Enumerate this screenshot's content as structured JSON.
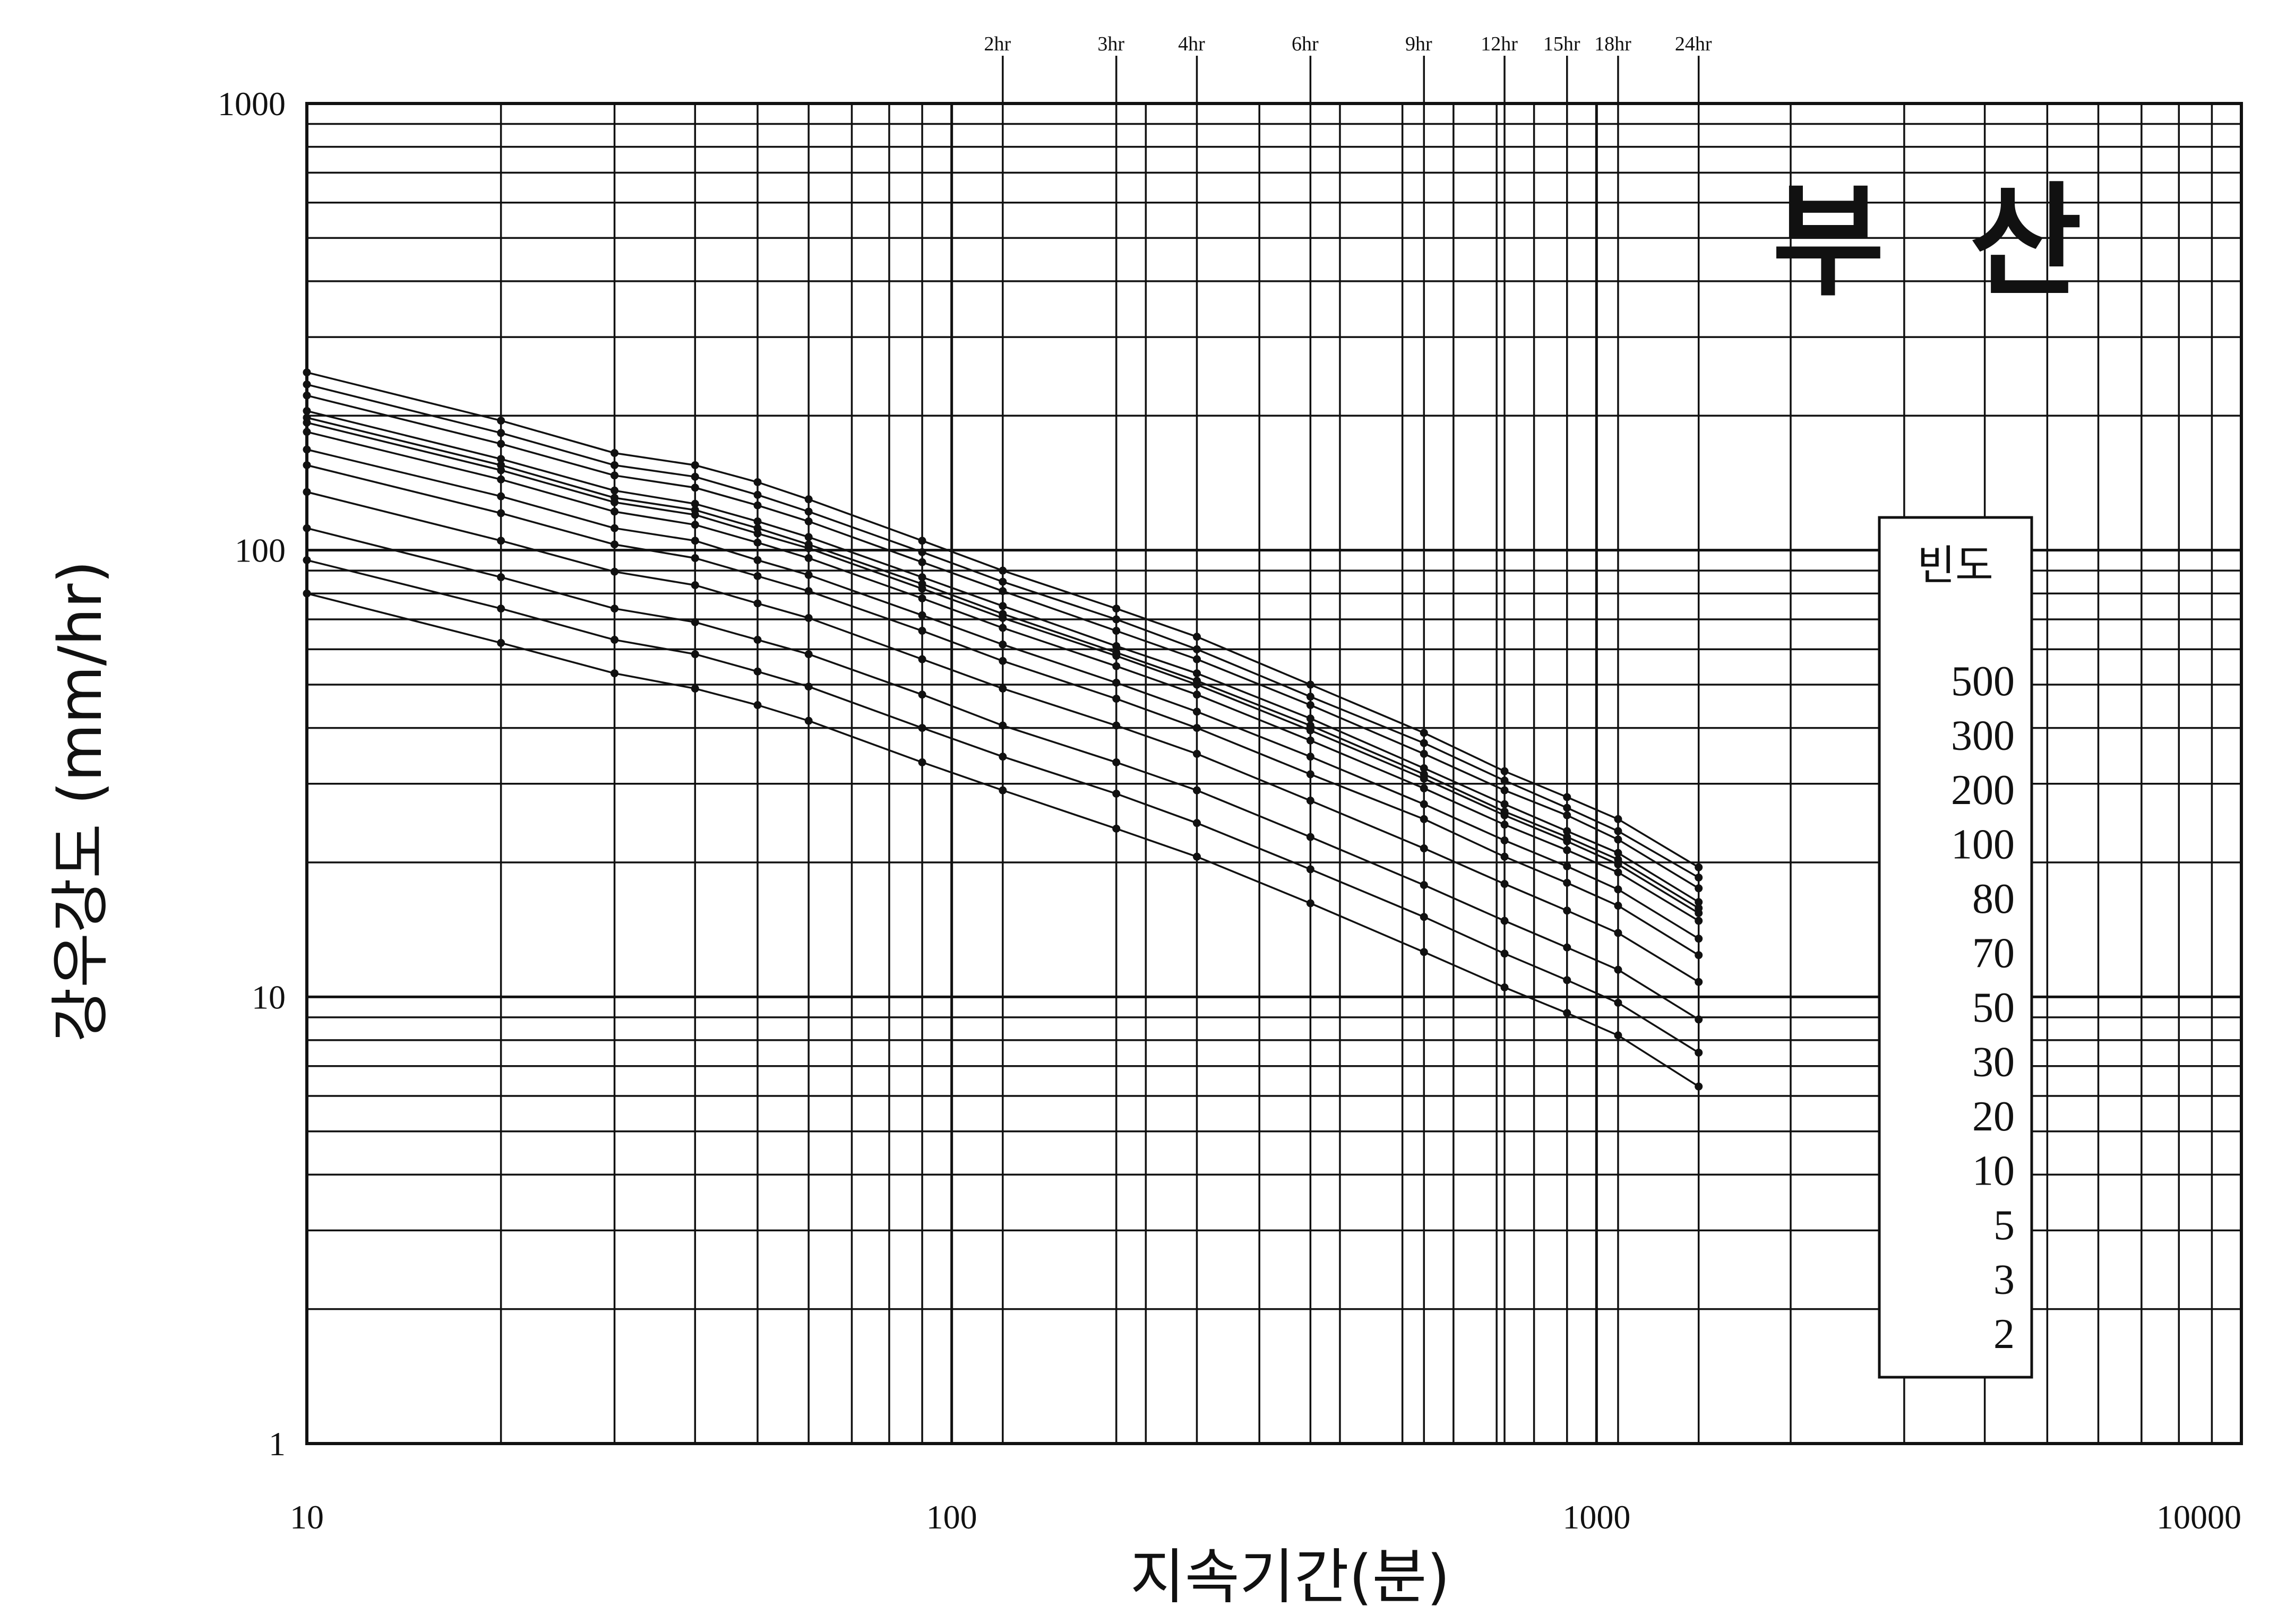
{
  "chart_data": {
    "type": "line",
    "title": "부  산",
    "xlabel": "지속기간(분)",
    "ylabel": "강우강도 (mm/hr)",
    "xscale": "log",
    "yscale": "log",
    "xlim": [
      10,
      10000
    ],
    "ylim": [
      1,
      1000
    ],
    "grid": true,
    "x_tick_labels": [
      "10",
      "100",
      "1000",
      "10000"
    ],
    "y_tick_labels": [
      "1",
      "10",
      "100",
      "1000"
    ],
    "duration_labels": [
      {
        "label": "2hr",
        "x": 120
      },
      {
        "label": "3hr",
        "x": 180
      },
      {
        "label": "4hr",
        "x": 240
      },
      {
        "label": "6hr",
        "x": 360
      },
      {
        "label": "9hr",
        "x": 540
      },
      {
        "label": "12hr",
        "x": 720
      },
      {
        "label": "15hr",
        "x": 900
      },
      {
        "label": "18hr",
        "x": 1080
      },
      {
        "label": "24hr",
        "x": 1440
      }
    ],
    "legend": {
      "title": "빈도",
      "entries": [
        "500",
        "300",
        "200",
        "100",
        "80",
        "70",
        "50",
        "30",
        "20",
        "10",
        "5",
        "3",
        "2"
      ],
      "placement": "right"
    },
    "x": [
      10,
      20,
      30,
      40,
      50,
      60,
      90,
      120,
      180,
      240,
      360,
      540,
      720,
      900,
      1080,
      1440
    ],
    "series": [
      {
        "name": "500",
        "values": [
          250,
          195,
          165,
          155,
          142,
          130,
          105,
          90,
          74,
          64,
          50,
          39,
          32,
          28,
          25,
          19.5
        ]
      },
      {
        "name": "300",
        "values": [
          235,
          183,
          155,
          146,
          133,
          122,
          99,
          85,
          70,
          60,
          47,
          37,
          30.5,
          26.5,
          23.5,
          18.5
        ]
      },
      {
        "name": "200",
        "values": [
          222,
          173,
          147,
          138,
          126,
          116,
          94,
          81,
          66,
          57,
          45,
          35,
          29,
          25.5,
          22.5,
          17.5
        ]
      },
      {
        "name": "100",
        "values": [
          205,
          160,
          136,
          127,
          116,
          107,
          87,
          75,
          61,
          53,
          42,
          32.5,
          27,
          23.5,
          21,
          16.3
        ]
      },
      {
        "name": "80",
        "values": [
          198,
          155,
          131,
          123,
          112,
          103,
          84,
          72,
          59,
          51,
          40.5,
          31.5,
          26,
          22.8,
          20.3,
          15.8
        ]
      },
      {
        "name": "70",
        "values": [
          193,
          151,
          128,
          120,
          109,
          101,
          82,
          70.5,
          58,
          50,
          39.5,
          30.8,
          25.5,
          22.3,
          19.8,
          15.4
        ]
      },
      {
        "name": "50",
        "values": [
          184,
          144,
          122,
          114,
          104,
          96,
          78,
          67,
          55,
          47.5,
          37.5,
          29.3,
          24.3,
          21.3,
          19,
          14.8
        ]
      },
      {
        "name": "30",
        "values": [
          168,
          132,
          112,
          105,
          95,
          88,
          71.5,
          61.5,
          50.5,
          43.5,
          34.5,
          27,
          22.4,
          19.6,
          17.4,
          13.5
        ]
      },
      {
        "name": "20",
        "values": [
          155,
          121,
          103,
          96,
          87.5,
          81,
          66,
          56.5,
          46.5,
          40,
          31.5,
          25,
          20.6,
          18,
          16,
          12.4
        ]
      },
      {
        "name": "10",
        "values": [
          135,
          105,
          89.5,
          83.5,
          76,
          70.5,
          57,
          49,
          40.5,
          35,
          27.5,
          21.5,
          17.9,
          15.6,
          13.9,
          10.8
        ]
      },
      {
        "name": "5",
        "values": [
          112,
          87,
          74,
          69,
          63,
          58.5,
          47.5,
          40.5,
          33.5,
          29,
          22.8,
          17.8,
          14.8,
          12.9,
          11.5,
          8.9
        ]
      },
      {
        "name": "3",
        "values": [
          95,
          74,
          63,
          58.5,
          53.5,
          49.5,
          40,
          34.5,
          28.5,
          24.5,
          19.3,
          15.1,
          12.5,
          10.9,
          9.7,
          7.5
        ]
      },
      {
        "name": "2",
        "values": [
          80,
          62,
          53,
          49,
          45,
          41.5,
          33.5,
          29,
          23.8,
          20.6,
          16.2,
          12.6,
          10.5,
          9.2,
          8.2,
          6.3
        ]
      }
    ]
  }
}
